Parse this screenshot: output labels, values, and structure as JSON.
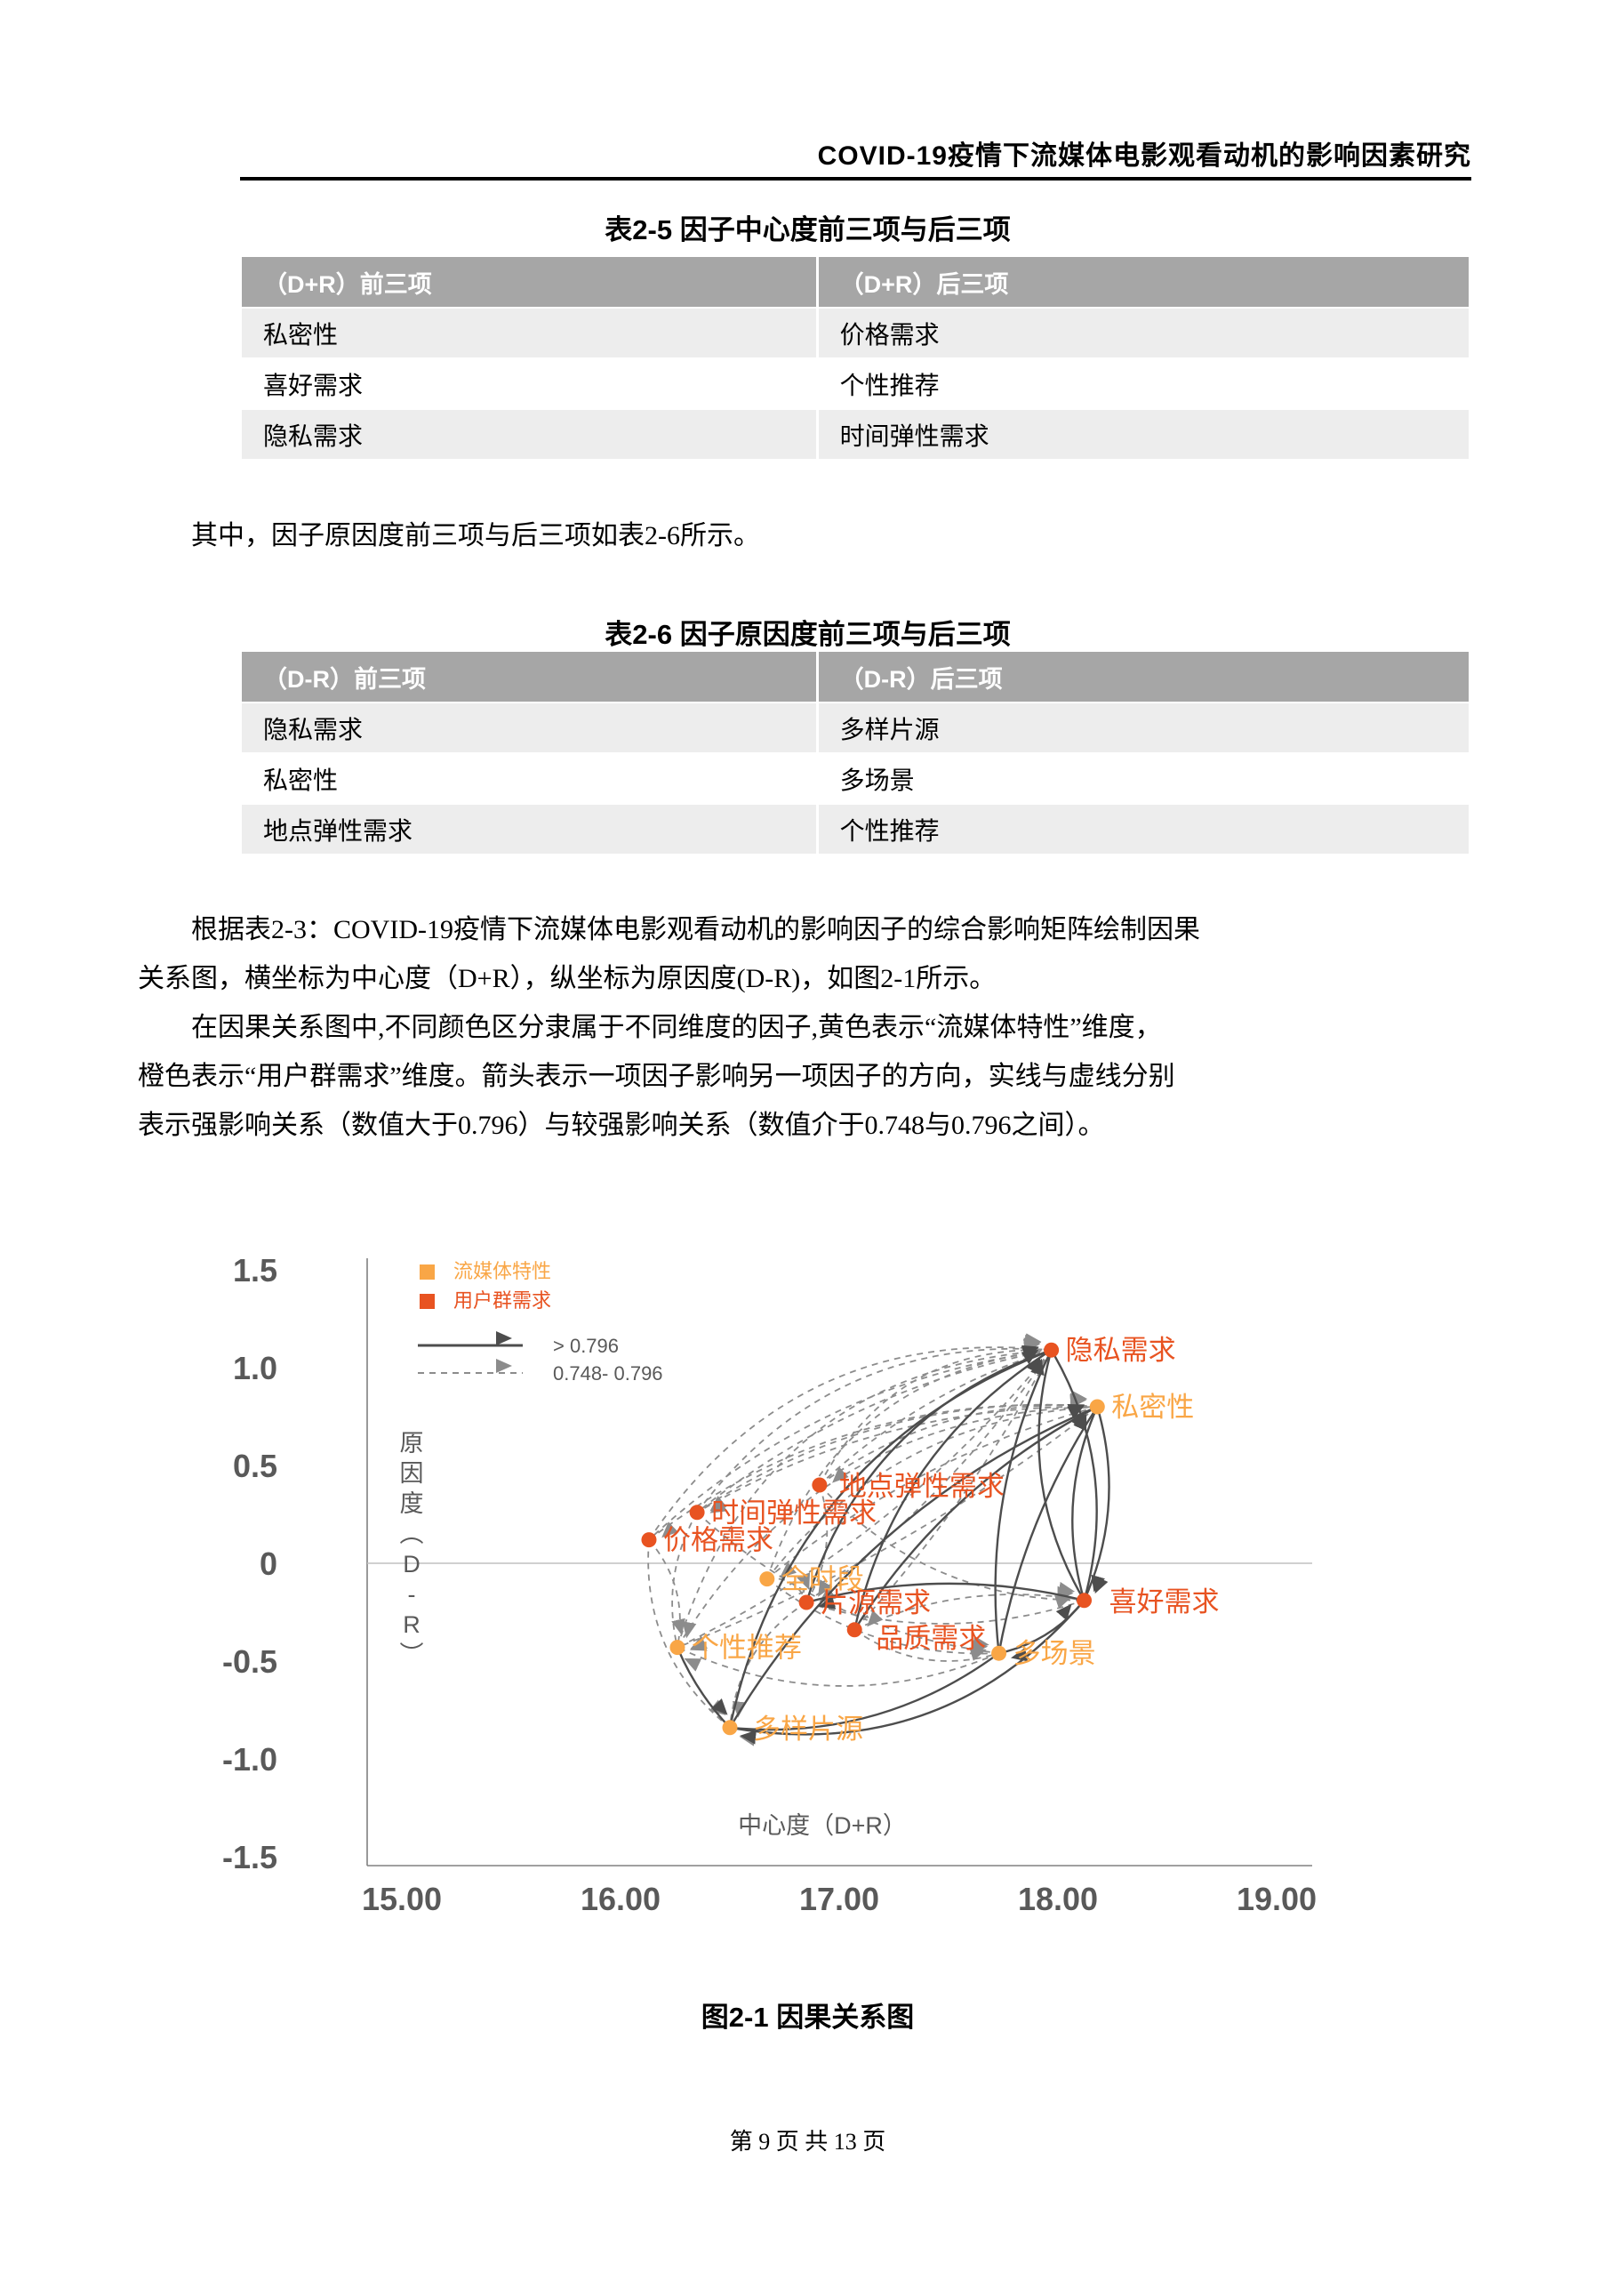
{
  "header": {
    "title": "COVID-19疫情下流媒体电影观看动机的影响因素研究"
  },
  "table1": {
    "title": "表2-5 因子中心度前三项与后三项",
    "headers": [
      "（D+R）前三项",
      "（D+R）后三项"
    ],
    "rows": [
      [
        "私密性",
        "价格需求"
      ],
      [
        "喜好需求",
        "个性推荐"
      ],
      [
        "隐私需求",
        "时间弹性需求"
      ]
    ]
  },
  "para_intro": "其中，因子原因度前三项与后三项如表2-6所示。",
  "table2": {
    "title": "表2-6 因子原因度前三项与后三项",
    "headers": [
      "（D-R）前三项",
      "（D-R）后三项"
    ],
    "rows": [
      [
        "隐私需求",
        "多样片源"
      ],
      [
        "私密性",
        "多场景"
      ],
      [
        "地点弹性需求",
        "个性推荐"
      ]
    ]
  },
  "body": {
    "lines": [
      "根据表2-3：COVID-19疫情下流媒体电影观看动机的影响因子的综合影响矩阵绘制因果",
      "关系图，横坐标为中心度（D+R），纵坐标为原因度(D-R)，如图2-1所示。",
      "在因果关系图中,不同颜色区分隶属于不同维度的因子,黄色表示“流媒体特性”维度，",
      "橙色表示“用户群需求”维度。箭头表示一项因子影响另一项因子的方向，实线与虚线分别",
      "表示强影响关系（数值大于0.796）与较强影响关系（数值介于0.748与0.796之间）。"
    ]
  },
  "figure": {
    "caption": "图2-1 因果关系图"
  },
  "footer": {
    "text": "第 9 页 共 13 页"
  },
  "chart_data": {
    "type": "scatter",
    "title": "因果关系图",
    "xlabel": "中心度（D+R）",
    "ylabel": "原因度（D-R）",
    "xlim": [
      15,
      19
    ],
    "ylim": [
      -1.5,
      1.5
    ],
    "x_ticks": [
      "15.00",
      "16.00",
      "17.00",
      "18.00",
      "19.00"
    ],
    "y_ticks": [
      "1.5",
      "1.0",
      "0.5",
      "0",
      "-0.5",
      "-1.0",
      "-1.5"
    ],
    "grid": "zero-line-only",
    "legend_position": "top-left-inside",
    "legend": [
      {
        "label": "流媒体特性",
        "color": "#F9A646"
      },
      {
        "label": "用户群需求",
        "color": "#E85321"
      }
    ],
    "edge_legend": [
      {
        "label": "> 0.796",
        "style": "solid"
      },
      {
        "label": "0.748- 0.796",
        "style": "dashed"
      }
    ],
    "points": [
      {
        "label": "隐私需求",
        "x": 17.97,
        "y": 1.09,
        "group": "用户群需求"
      },
      {
        "label": "私密性",
        "x": 18.18,
        "y": 0.8,
        "group": "流媒体特性"
      },
      {
        "label": "地点弹性需求",
        "x": 16.91,
        "y": 0.4,
        "group": "用户群需求"
      },
      {
        "label": "时间弹性需求",
        "x": 16.35,
        "y": 0.26,
        "group": "用户群需求"
      },
      {
        "label": "价格需求",
        "x": 16.13,
        "y": 0.12,
        "group": "用户群需求"
      },
      {
        "label": "全时段",
        "x": 16.67,
        "y": -0.08,
        "group": "流媒体特性"
      },
      {
        "label": "片源需求",
        "x": 16.85,
        "y": -0.2,
        "group": "用户群需求"
      },
      {
        "label": "品质需求",
        "x": 17.07,
        "y": -0.34,
        "group": "用户群需求"
      },
      {
        "label": "喜好需求",
        "x": 18.12,
        "y": -0.19,
        "group": "用户群需求"
      },
      {
        "label": "多场景",
        "x": 17.73,
        "y": -0.46,
        "group": "流媒体特性"
      },
      {
        "label": "个性推荐",
        "x": 16.26,
        "y": -0.43,
        "group": "流媒体特性"
      },
      {
        "label": "多样片源",
        "x": 16.5,
        "y": -0.84,
        "group": "流媒体特性"
      }
    ],
    "edges": [
      {
        "from": "价格需求",
        "to": "隐私需求",
        "style": "dashed",
        "bend": 150
      },
      {
        "from": "时间弹性需求",
        "to": "隐私需求",
        "style": "dashed",
        "bend": 120
      },
      {
        "from": "地点弹性需求",
        "to": "隐私需求",
        "style": "dashed",
        "bend": 95
      },
      {
        "from": "全时段",
        "to": "隐私需求",
        "style": "dashed",
        "bend": 130
      },
      {
        "from": "个性推荐",
        "to": "隐私需求",
        "style": "dashed",
        "bend": 185
      },
      {
        "from": "价格需求",
        "to": "私密性",
        "style": "dashed",
        "bend": 100
      },
      {
        "from": "时间弹性需求",
        "to": "私密性",
        "style": "dashed",
        "bend": 80
      },
      {
        "from": "地点弹性需求",
        "to": "私密性",
        "style": "dashed",
        "bend": 60
      },
      {
        "from": "全时段",
        "to": "私密性",
        "style": "dashed",
        "bend": 95
      },
      {
        "from": "个性推荐",
        "to": "私密性",
        "style": "dashed",
        "bend": 150
      },
      {
        "from": "隐私需求",
        "to": "价格需求",
        "style": "dashed",
        "bend": -80
      },
      {
        "from": "隐私需求",
        "to": "时间弹性需求",
        "style": "dashed",
        "bend": -55
      },
      {
        "from": "隐私需求",
        "to": "地点弹性需求",
        "style": "dashed",
        "bend": -35
      },
      {
        "from": "私密性",
        "to": "全时段",
        "style": "dashed",
        "bend": -45
      },
      {
        "from": "私密性",
        "to": "时间弹性需求",
        "style": "dashed",
        "bend": -65
      },
      {
        "from": "隐私需求",
        "to": "个性推荐",
        "style": "dashed",
        "bend": 60
      },
      {
        "from": "私密性",
        "to": "个性推荐",
        "style": "dashed",
        "bend": 40
      },
      {
        "from": "隐私需求",
        "to": "品质需求",
        "style": "dashed",
        "bend": 25
      },
      {
        "from": "隐私需求",
        "to": "片源需求",
        "style": "dashed",
        "bend": 35
      },
      {
        "from": "地点弹性需求",
        "to": "片源需求",
        "style": "dashed",
        "bend": 30
      },
      {
        "from": "时间弹性需求",
        "to": "个性推荐",
        "style": "dashed",
        "bend": -30
      },
      {
        "from": "价格需求",
        "to": "个性推荐",
        "style": "dashed",
        "bend": 30
      },
      {
        "from": "全时段",
        "to": "片源需求",
        "style": "dashed",
        "bend": 20
      },
      {
        "from": "品质需求",
        "to": "多场景",
        "style": "dashed",
        "bend": -40
      },
      {
        "from": "片源需求",
        "to": "多样片源",
        "style": "dashed",
        "bend": -40
      },
      {
        "from": "喜好需求",
        "to": "多样片源",
        "style": "dashed",
        "bend": 120
      },
      {
        "from": "多场景",
        "to": "个性推荐",
        "style": "dashed",
        "bend": 80
      },
      {
        "from": "品质需求",
        "to": "喜好需求",
        "style": "dashed",
        "bend": 40
      },
      {
        "from": "片源需求",
        "to": "喜好需求",
        "style": "dashed",
        "bend": -50
      },
      {
        "from": "地点弹性需求",
        "to": "喜好需求",
        "style": "dashed",
        "bend": -70
      },
      {
        "from": "时间弹性需求",
        "to": "多场景",
        "style": "dashed",
        "bend": -60
      },
      {
        "from": "价格需求",
        "to": "多样片源",
        "style": "dashed",
        "bend": -60
      },
      {
        "from": "全时段",
        "to": "多场景",
        "style": "dashed",
        "bend": -50
      },
      {
        "from": "多样片源",
        "to": "隐私需求",
        "style": "solid",
        "bend": 150
      },
      {
        "from": "品质需求",
        "to": "隐私需求",
        "style": "solid",
        "bend": 80
      },
      {
        "from": "多场景",
        "to": "隐私需求",
        "style": "solid",
        "bend": 50
      },
      {
        "from": "片源需求",
        "to": "隐私需求",
        "style": "solid",
        "bend": 100
      },
      {
        "from": "喜好需求",
        "to": "隐私需求",
        "style": "solid",
        "bend": 60
      },
      {
        "from": "品质需求",
        "to": "私密性",
        "style": "solid",
        "bend": 50
      },
      {
        "from": "多场景",
        "to": "私密性",
        "style": "solid",
        "bend": 30
      },
      {
        "from": "喜好需求",
        "to": "私密性",
        "style": "solid",
        "bend": 40
      },
      {
        "from": "多样片源",
        "to": "私密性",
        "style": "solid",
        "bend": 90
      },
      {
        "from": "隐私需求",
        "to": "喜好需求",
        "style": "solid",
        "bend": 60
      },
      {
        "from": "私密性",
        "to": "喜好需求",
        "style": "solid",
        "bend": 40
      },
      {
        "from": "喜好需求",
        "to": "片源需求",
        "style": "solid",
        "bend": -40
      },
      {
        "from": "个性推荐",
        "to": "多样片源",
        "style": "solid",
        "bend": -10
      },
      {
        "from": "多场景",
        "to": "多样片源",
        "style": "solid",
        "bend": 60
      },
      {
        "from": "多样片源",
        "to": "喜好需求",
        "style": "solid",
        "bend": -120
      },
      {
        "from": "喜好需求",
        "to": "多场景",
        "style": "solid",
        "bend": 20
      }
    ],
    "colors": {
      "stream_feature": "#F9A646",
      "user_need": "#E85321",
      "solid_edge": "#4D4D4D",
      "dashed_edge": "#8C8C8C",
      "axis": "#808080",
      "zero_line": "#C0C0C0",
      "tick_text": "#595959"
    }
  }
}
